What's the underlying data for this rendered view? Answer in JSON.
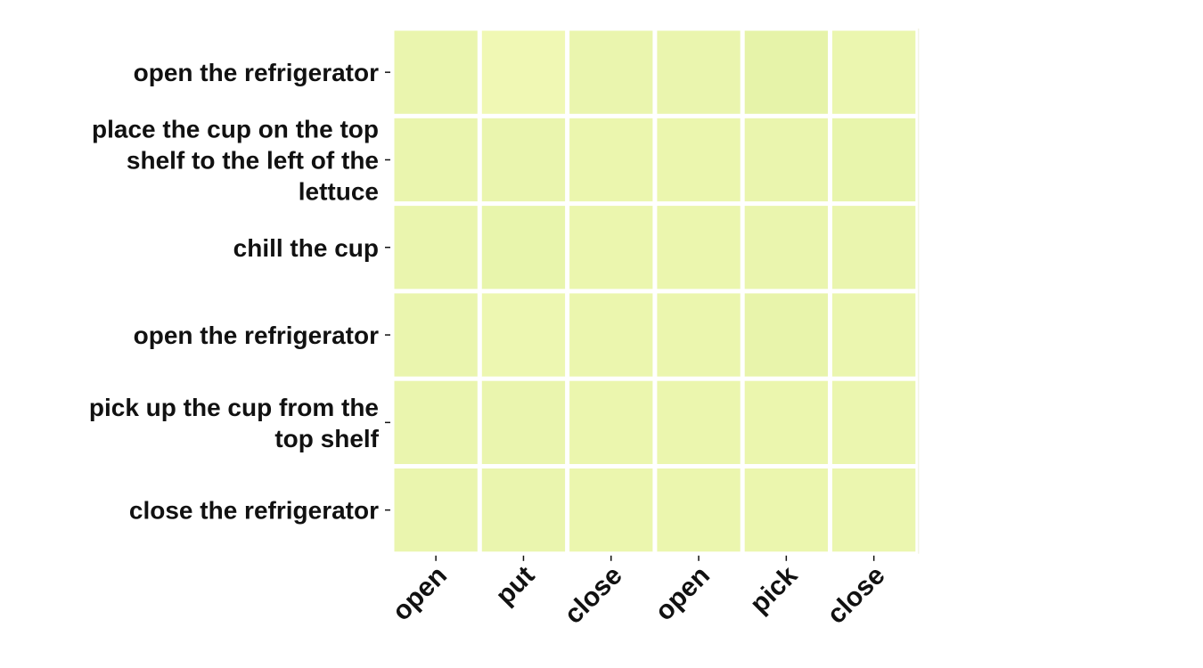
{
  "chart_data": {
    "type": "heatmap",
    "title": "",
    "xlabel": "",
    "ylabel": "",
    "grid": false,
    "legend": "none",
    "rows": [
      [
        "open the refrigerator"
      ],
      [
        "place the cup on the top",
        "shelf to the left of the",
        "lettuce"
      ],
      [
        "chill the cup"
      ],
      [
        "open the refrigerator"
      ],
      [
        "pick up the cup from the",
        "top shelf"
      ],
      [
        "close the refrigerator"
      ]
    ],
    "columns": [
      "open",
      "put",
      "close",
      "open",
      "pick",
      "close"
    ],
    "values": [
      [
        0.168,
        0.158,
        0.168,
        0.168,
        0.175,
        0.166
      ],
      [
        0.168,
        0.168,
        0.167,
        0.167,
        0.168,
        0.171
      ],
      [
        0.168,
        0.171,
        0.167,
        0.167,
        0.168,
        0.168
      ],
      [
        0.168,
        0.163,
        0.167,
        0.167,
        0.172,
        0.166
      ],
      [
        0.168,
        0.168,
        0.167,
        0.167,
        0.167,
        0.166
      ],
      [
        0.168,
        0.168,
        0.167,
        0.167,
        0.167,
        0.166
      ]
    ],
    "colormap": {
      "low": "#f2f9b6",
      "high": "#e3f2a6",
      "vmin": 0.155,
      "vmax": 0.18
    },
    "cell_gap_color": "#ffffff",
    "tick_color": "#111111"
  }
}
